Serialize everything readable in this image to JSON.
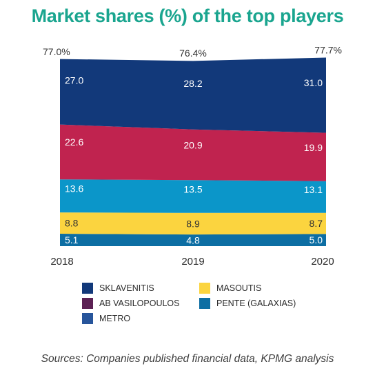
{
  "title": "Market shares (%) of the top players",
  "source": "Sources: Companies published financial data, KPMG analysis",
  "chart_data": {
    "type": "area",
    "stacked": true,
    "title": "Market shares (%) of the top players",
    "x": [
      "2018",
      "2019",
      "2020"
    ],
    "ylim": [
      0,
      80
    ],
    "grid": false,
    "legend_position": "bottom",
    "series": [
      {
        "name": "PENTE (GALAXIAS)",
        "color": "#0d6ea3",
        "values": [
          5.1,
          4.8,
          5.0
        ],
        "labels": [
          "5.1",
          "4.8",
          "5.0"
        ]
      },
      {
        "name": "MASOUTIS",
        "color": "#fbd43f",
        "values": [
          8.8,
          8.9,
          8.7
        ],
        "labels": [
          "8.8",
          "8.9",
          "8.7"
        ]
      },
      {
        "name": "METRO",
        "color": "#0b96c9",
        "values": [
          13.6,
          13.5,
          13.1
        ],
        "labels": [
          "13.6",
          "13.5",
          "13.1"
        ]
      },
      {
        "name": "AB VASILOPOULOS",
        "color": "#c0234f",
        "values": [
          22.6,
          20.9,
          19.9
        ],
        "labels": [
          "22.6",
          "20.9",
          "19.9"
        ]
      },
      {
        "name": "SKLAVENITIS",
        "color": "#12397a",
        "values": [
          27.0,
          28.2,
          31.0
        ],
        "labels": [
          "27.0",
          "28.2",
          "31.0"
        ]
      }
    ],
    "totals": [
      77.0,
      76.4,
      77.7
    ],
    "total_labels": [
      "77.0%",
      "76.4%",
      "77.7%"
    ]
  },
  "legend": [
    {
      "label": "SKLAVENITIS",
      "color": "#12397a",
      "icon": "swatch"
    },
    {
      "label": "MASOUTIS",
      "color": "#fbd43f",
      "icon": "swatch"
    },
    {
      "label": "AB VASILOPOULOS",
      "color": "#5c2154",
      "icon": "swatch"
    },
    {
      "label": "PENTE (GALAXIAS)",
      "color": "#0d6ea3",
      "icon": "swatch"
    },
    {
      "label": "METRO",
      "color": "#27559b",
      "icon": "swatch"
    }
  ]
}
